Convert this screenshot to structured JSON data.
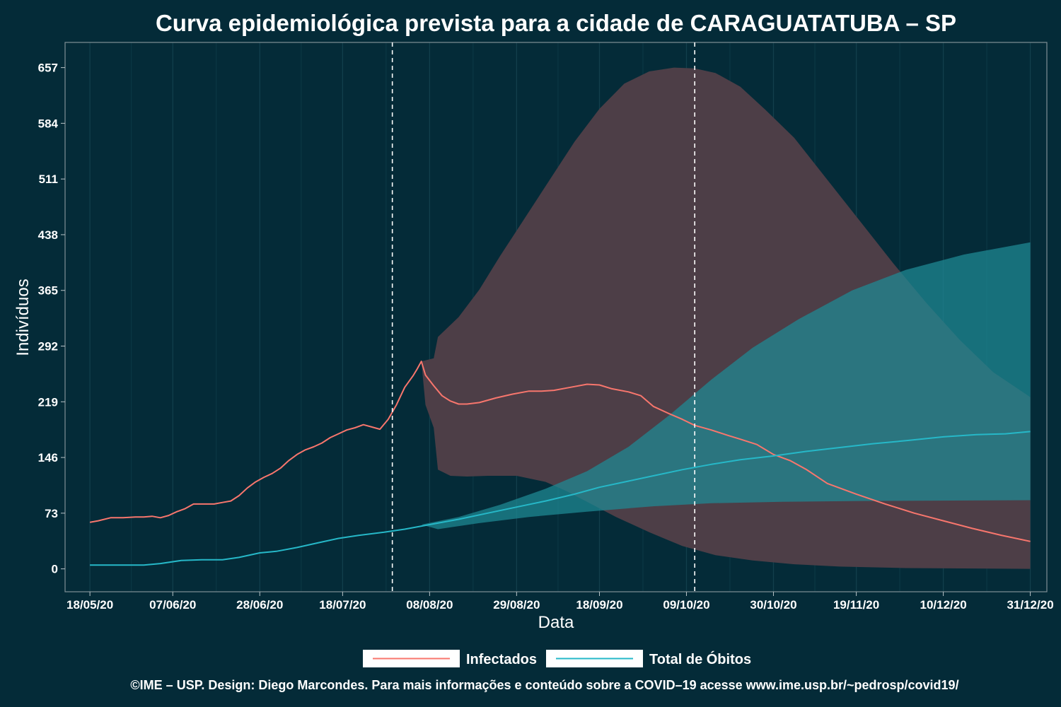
{
  "chart_data": {
    "type": "line",
    "title": "Curva epidemiológica prevista para a cidade de CARAGUATATUBA – SP",
    "xlabel": "Data",
    "ylabel": "Indivíduos",
    "x_range": [
      "2020-05-12",
      "2021-01-04"
    ],
    "ylim": [
      -30,
      690
    ],
    "x_ticks": [
      {
        "date": "2020-05-18",
        "label": "18/05/20"
      },
      {
        "date": "2020-06-07",
        "label": "07/06/20"
      },
      {
        "date": "2020-06-28",
        "label": "28/06/20"
      },
      {
        "date": "2020-07-18",
        "label": "18/07/20"
      },
      {
        "date": "2020-08-08",
        "label": "08/08/20"
      },
      {
        "date": "2020-08-29",
        "label": "29/08/20"
      },
      {
        "date": "2020-09-18",
        "label": "18/09/20"
      },
      {
        "date": "2020-10-09",
        "label": "09/10/20"
      },
      {
        "date": "2020-10-30",
        "label": "30/10/20"
      },
      {
        "date": "2020-11-19",
        "label": "19/11/20"
      },
      {
        "date": "2020-12-10",
        "label": "10/12/20"
      },
      {
        "date": "2020-12-31",
        "label": "31/12/20"
      }
    ],
    "y_ticks": [
      0,
      73,
      146,
      219,
      292,
      365,
      438,
      511,
      584,
      657
    ],
    "grid": true,
    "legend_position": "bottom",
    "vlines": [
      "2020-07-30",
      "2020-10-11"
    ],
    "series": [
      {
        "name": "Infectados",
        "color": "#f8766d",
        "points": [
          [
            "2020-05-18",
            61
          ],
          [
            "2020-05-20",
            63
          ],
          [
            "2020-05-23",
            67
          ],
          [
            "2020-05-26",
            67
          ],
          [
            "2020-05-29",
            68
          ],
          [
            "2020-05-31",
            68
          ],
          [
            "2020-06-02",
            69
          ],
          [
            "2020-06-04",
            67
          ],
          [
            "2020-06-06",
            70
          ],
          [
            "2020-06-08",
            75
          ],
          [
            "2020-06-10",
            79
          ],
          [
            "2020-06-12",
            85
          ],
          [
            "2020-06-15",
            85
          ],
          [
            "2020-06-17",
            85
          ],
          [
            "2020-06-19",
            87
          ],
          [
            "2020-06-21",
            89
          ],
          [
            "2020-06-23",
            96
          ],
          [
            "2020-06-25",
            106
          ],
          [
            "2020-06-27",
            114
          ],
          [
            "2020-06-29",
            120
          ],
          [
            "2020-07-01",
            125
          ],
          [
            "2020-07-03",
            132
          ],
          [
            "2020-07-05",
            142
          ],
          [
            "2020-07-07",
            150
          ],
          [
            "2020-07-09",
            156
          ],
          [
            "2020-07-11",
            160
          ],
          [
            "2020-07-13",
            165
          ],
          [
            "2020-07-15",
            172
          ],
          [
            "2020-07-17",
            177
          ],
          [
            "2020-07-19",
            182
          ],
          [
            "2020-07-21",
            185
          ],
          [
            "2020-07-23",
            189
          ],
          [
            "2020-07-25",
            186
          ],
          [
            "2020-07-27",
            183
          ],
          [
            "2020-07-29",
            196
          ],
          [
            "2020-07-31",
            215
          ],
          [
            "2020-08-02",
            238
          ],
          [
            "2020-08-04",
            253
          ],
          [
            "2020-08-05",
            262
          ],
          [
            "2020-08-06",
            272
          ],
          [
            "2020-08-07",
            254
          ],
          [
            "2020-08-09",
            240
          ],
          [
            "2020-08-11",
            227
          ],
          [
            "2020-08-13",
            220
          ],
          [
            "2020-08-15",
            216
          ],
          [
            "2020-08-17",
            216
          ],
          [
            "2020-08-20",
            218
          ],
          [
            "2020-08-24",
            224
          ],
          [
            "2020-08-28",
            229
          ],
          [
            "2020-09-01",
            233
          ],
          [
            "2020-09-04",
            233
          ],
          [
            "2020-09-07",
            234
          ],
          [
            "2020-09-11",
            238
          ],
          [
            "2020-09-15",
            242
          ],
          [
            "2020-09-18",
            241
          ],
          [
            "2020-09-21",
            236
          ],
          [
            "2020-09-25",
            232
          ],
          [
            "2020-09-28",
            227
          ],
          [
            "2020-10-01",
            213
          ],
          [
            "2020-10-05",
            203
          ],
          [
            "2020-10-08",
            196
          ],
          [
            "2020-10-11",
            188
          ],
          [
            "2020-10-15",
            182
          ],
          [
            "2020-10-19",
            175
          ],
          [
            "2020-10-22",
            170
          ],
          [
            "2020-10-26",
            163
          ],
          [
            "2020-10-30",
            150
          ],
          [
            "2020-11-03",
            142
          ],
          [
            "2020-11-07",
            130
          ],
          [
            "2020-11-12",
            112
          ],
          [
            "2020-11-19",
            98
          ],
          [
            "2020-11-26",
            85
          ],
          [
            "2020-12-03",
            73
          ],
          [
            "2020-12-10",
            63
          ],
          [
            "2020-12-17",
            53
          ],
          [
            "2020-12-24",
            44
          ],
          [
            "2020-12-31",
            36
          ]
        ]
      },
      {
        "name": "Total de Óbitos",
        "color": "#26b8c8",
        "points": [
          [
            "2020-05-18",
            5
          ],
          [
            "2020-05-25",
            5
          ],
          [
            "2020-05-31",
            5
          ],
          [
            "2020-06-04",
            7
          ],
          [
            "2020-06-09",
            11
          ],
          [
            "2020-06-14",
            12
          ],
          [
            "2020-06-19",
            12
          ],
          [
            "2020-06-23",
            15
          ],
          [
            "2020-06-28",
            21
          ],
          [
            "2020-07-02",
            23
          ],
          [
            "2020-07-07",
            28
          ],
          [
            "2020-07-12",
            34
          ],
          [
            "2020-07-17",
            40
          ],
          [
            "2020-07-22",
            44
          ],
          [
            "2020-07-28",
            48
          ],
          [
            "2020-08-02",
            52
          ],
          [
            "2020-08-08",
            58
          ],
          [
            "2020-08-15",
            65
          ],
          [
            "2020-08-22",
            73
          ],
          [
            "2020-08-29",
            81
          ],
          [
            "2020-09-05",
            89
          ],
          [
            "2020-09-12",
            98
          ],
          [
            "2020-09-18",
            107
          ],
          [
            "2020-09-25",
            115
          ],
          [
            "2020-10-01",
            122
          ],
          [
            "2020-10-08",
            130
          ],
          [
            "2020-10-15",
            137
          ],
          [
            "2020-10-22",
            143
          ],
          [
            "2020-10-30",
            148
          ],
          [
            "2020-11-07",
            154
          ],
          [
            "2020-11-15",
            159
          ],
          [
            "2020-11-23",
            164
          ],
          [
            "2020-12-01",
            168
          ],
          [
            "2020-12-10",
            173
          ],
          [
            "2020-12-18",
            176
          ],
          [
            "2020-12-25",
            177
          ],
          [
            "2020-12-31",
            180
          ]
        ]
      }
    ],
    "bands": [
      {
        "series": "Infectados",
        "color": "#4d3e47",
        "upper": [
          [
            "2020-08-06",
            272
          ],
          [
            "2020-08-09",
            276
          ],
          [
            "2020-08-10",
            304
          ],
          [
            "2020-08-15",
            330
          ],
          [
            "2020-08-20",
            366
          ],
          [
            "2020-08-25",
            410
          ],
          [
            "2020-08-31",
            460
          ],
          [
            "2020-09-06",
            510
          ],
          [
            "2020-09-12",
            560
          ],
          [
            "2020-09-18",
            603
          ],
          [
            "2020-09-24",
            636
          ],
          [
            "2020-09-30",
            652
          ],
          [
            "2020-10-06",
            657
          ],
          [
            "2020-10-11",
            656
          ],
          [
            "2020-10-16",
            650
          ],
          [
            "2020-10-22",
            632
          ],
          [
            "2020-10-28",
            602
          ],
          [
            "2020-11-04",
            565
          ],
          [
            "2020-11-12",
            510
          ],
          [
            "2020-11-20",
            455
          ],
          [
            "2020-11-28",
            400
          ],
          [
            "2020-12-06",
            348
          ],
          [
            "2020-12-14",
            300
          ],
          [
            "2020-12-22",
            258
          ],
          [
            "2020-12-31",
            225
          ]
        ],
        "lower": [
          [
            "2020-08-06",
            272
          ],
          [
            "2020-08-07",
            215
          ],
          [
            "2020-08-09",
            185
          ],
          [
            "2020-08-10",
            130
          ],
          [
            "2020-08-13",
            122
          ],
          [
            "2020-08-17",
            121
          ],
          [
            "2020-08-22",
            122
          ],
          [
            "2020-08-29",
            122
          ],
          [
            "2020-09-05",
            114
          ],
          [
            "2020-09-10",
            102
          ],
          [
            "2020-09-15",
            88
          ],
          [
            "2020-09-22",
            68
          ],
          [
            "2020-09-30",
            48
          ],
          [
            "2020-10-08",
            30
          ],
          [
            "2020-10-16",
            18
          ],
          [
            "2020-10-25",
            11
          ],
          [
            "2020-11-04",
            6
          ],
          [
            "2020-11-15",
            3
          ],
          [
            "2020-12-01",
            1
          ],
          [
            "2020-12-31",
            0
          ]
        ]
      },
      {
        "series": "Total de Óbitos",
        "color": "#1f8b96",
        "upper": [
          [
            "2020-08-06",
            58
          ],
          [
            "2020-08-15",
            68
          ],
          [
            "2020-08-25",
            84
          ],
          [
            "2020-09-05",
            105
          ],
          [
            "2020-09-15",
            128
          ],
          [
            "2020-09-25",
            160
          ],
          [
            "2020-10-05",
            202
          ],
          [
            "2020-10-15",
            248
          ],
          [
            "2020-10-25",
            290
          ],
          [
            "2020-11-05",
            327
          ],
          [
            "2020-11-18",
            365
          ],
          [
            "2020-12-01",
            392
          ],
          [
            "2020-12-15",
            412
          ],
          [
            "2020-12-31",
            428
          ]
        ],
        "lower": [
          [
            "2020-08-06",
            58
          ],
          [
            "2020-08-10",
            52
          ],
          [
            "2020-08-20",
            60
          ],
          [
            "2020-09-01",
            68
          ],
          [
            "2020-09-15",
            75
          ],
          [
            "2020-10-01",
            82
          ],
          [
            "2020-10-15",
            86
          ],
          [
            "2020-11-01",
            88
          ],
          [
            "2020-11-20",
            89
          ],
          [
            "2020-12-31",
            90
          ]
        ]
      }
    ]
  },
  "legend": {
    "items": [
      {
        "label": "Infectados",
        "color": "#f8766d"
      },
      {
        "label": "Total de Óbitos",
        "color": "#26b8c8"
      }
    ]
  },
  "footer": {
    "text": "©IME – USP. Design: Diego Marcondes. Para mais informações e conteúdo sobre a COVID–19 acesse www.ime.usp.br/~pedrosp/covid19/"
  }
}
